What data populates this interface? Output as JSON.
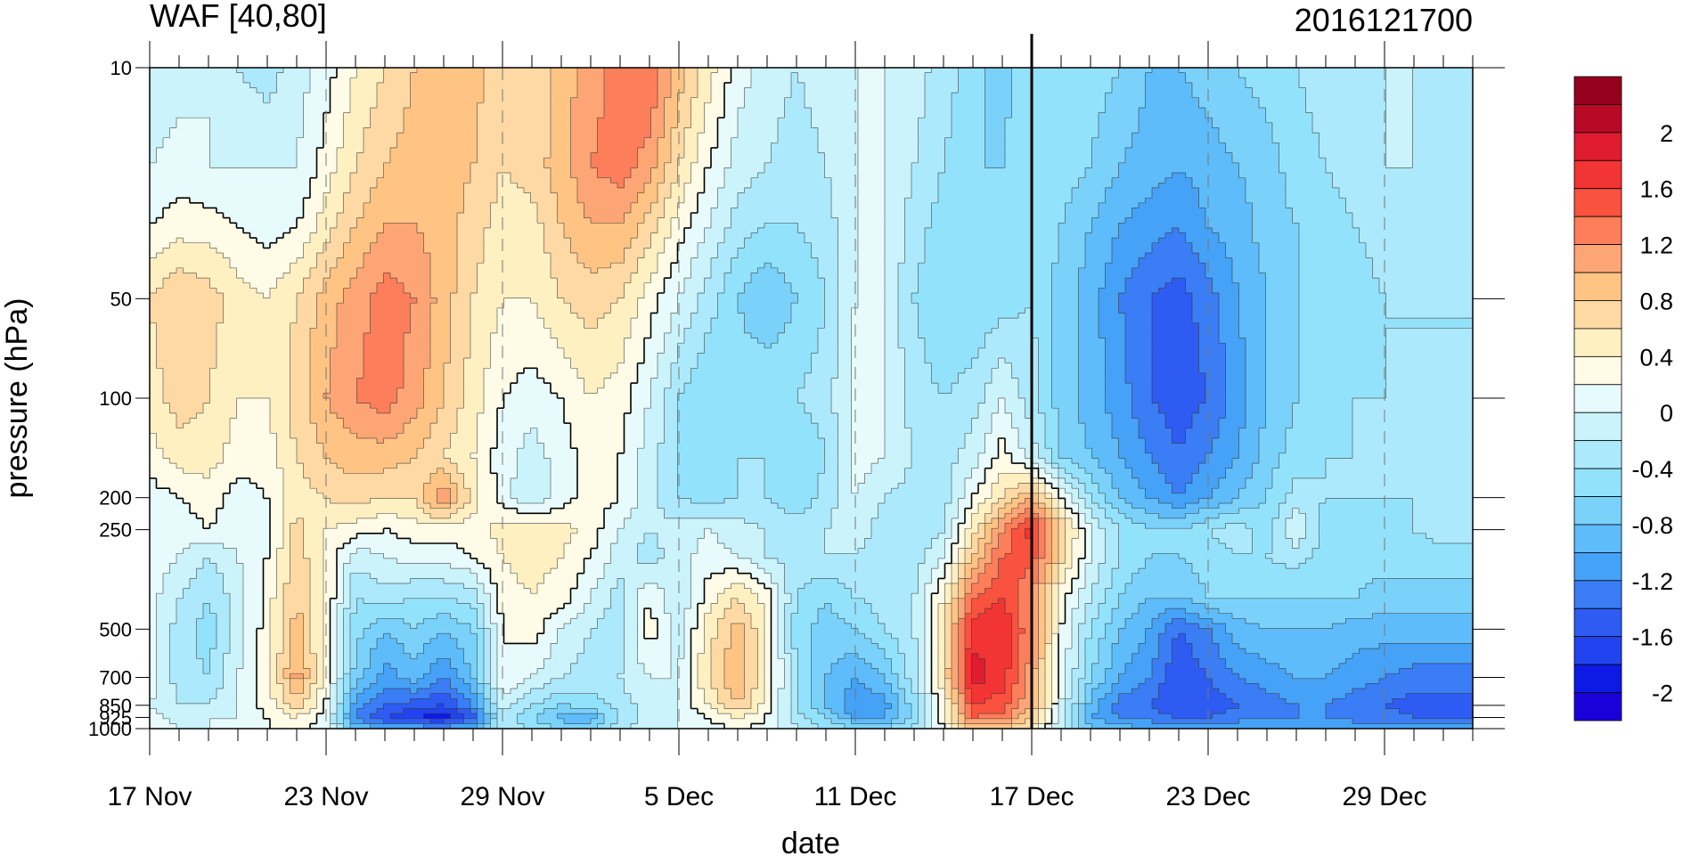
{
  "chart_data": {
    "type": "heatmap",
    "title": "WAF [40,80]",
    "subtitle": "2016121700",
    "xlabel": "date",
    "ylabel": "pressure (hPa)",
    "x_ticks": [
      "17 Nov",
      "23 Nov",
      "29 Nov",
      "5 Dec",
      "11 Dec",
      "17 Dec",
      "23 Dec",
      "29 Dec"
    ],
    "y_ticks": [
      "10",
      "50",
      "100",
      "200",
      "250",
      "500",
      "700",
      "850",
      "925",
      "1000"
    ],
    "y_scale": "log",
    "ylim": [
      1000,
      10
    ],
    "xlim": [
      "2016-11-17",
      "2017-01-01"
    ],
    "marker_line": "2016-12-17",
    "colorbar": {
      "levels": [
        -2.2,
        -2.0,
        -1.8,
        -1.6,
        -1.4,
        -1.2,
        -1.0,
        -0.8,
        -0.6,
        -0.4,
        -0.2,
        0,
        0.2,
        0.4,
        0.6,
        0.8,
        1.0,
        1.2,
        1.4,
        1.6,
        1.8,
        2.0,
        2.2
      ],
      "labels": [
        "2",
        "1.6",
        "1.2",
        "0.8",
        "0.4",
        "0",
        "-0.4",
        "-0.8",
        "-1.2",
        "-1.6",
        "-2"
      ],
      "colors": [
        "#1a00d9",
        "#0d1ae6",
        "#2144f0",
        "#2e5cf2",
        "#3a7df5",
        "#45a2f7",
        "#5ebcfa",
        "#7ad2fb",
        "#93e2fb",
        "#ade9fc",
        "#caf3fc",
        "#e8fbfc",
        "#fffbe6",
        "#fff0c2",
        "#ffd9a4",
        "#ffc484",
        "#fea576",
        "#fd7e5a",
        "#f9523f",
        "#f23434",
        "#df1c30",
        "#b80a27",
        "#96001f"
      ]
    },
    "columns_dates": [
      "17 Nov",
      "18 Nov",
      "19 Nov",
      "20 Nov",
      "21 Nov",
      "22 Nov",
      "23 Nov",
      "24 Nov",
      "25 Nov",
      "26 Nov",
      "27 Nov",
      "28 Nov",
      "29 Nov",
      "30 Nov",
      "1 Dec",
      "2 Dec",
      "3 Dec",
      "4 Dec",
      "5 Dec",
      "6 Dec",
      "7 Dec",
      "8 Dec",
      "9 Dec",
      "10 Dec",
      "11 Dec",
      "12 Dec",
      "13 Dec",
      "14 Dec",
      "15 Dec",
      "16 Dec",
      "17 Dec",
      "18 Dec",
      "19 Dec",
      "20 Dec",
      "21 Dec",
      "22 Dec",
      "23 Dec",
      "24 Dec",
      "25 Dec",
      "26 Dec",
      "27 Dec",
      "28 Dec",
      "29 Dec",
      "30 Dec",
      "31 Dec"
    ],
    "rows_hpa": [
      10,
      20,
      30,
      50,
      100,
      150,
      200,
      250,
      300,
      400,
      500,
      700,
      850,
      925,
      1000
    ],
    "values": [
      [
        -0.2,
        -0.1,
        0.0,
        -0.2,
        -0.3,
        -0.1,
        0.1,
        0.4,
        0.6,
        0.8,
        0.9,
        0.9,
        0.6,
        0.6,
        0.9,
        1.1,
        1.3,
        1.4,
        0.9,
        0.5,
        0.1,
        -0.1,
        -0.2,
        -0.1,
        0.0,
        0.0,
        -0.1,
        -0.3,
        -0.5,
        -0.7,
        -0.4,
        -0.4,
        -0.5,
        -0.6,
        -0.8,
        -0.8,
        -0.7,
        -0.6,
        -0.5,
        -0.4,
        -0.3,
        -0.2,
        -0.2,
        -0.2,
        -0.3
      ],
      [
        0.0,
        0.1,
        0.0,
        0.0,
        0.0,
        0.0,
        0.3,
        0.6,
        0.8,
        0.9,
        0.9,
        0.8,
        0.6,
        0.7,
        0.9,
        1.2,
        1.3,
        1.1,
        0.6,
        0.2,
        -0.1,
        -0.2,
        -0.3,
        -0.2,
        0.0,
        0.0,
        -0.2,
        -0.4,
        -0.6,
        -0.6,
        -0.4,
        -0.5,
        -0.6,
        -0.8,
        -0.9,
        -1.0,
        -0.9,
        -0.8,
        -0.7,
        -0.5,
        -0.4,
        -0.3,
        -0.2,
        -0.2,
        -0.3
      ],
      [
        0.2,
        0.3,
        0.3,
        0.2,
        0.1,
        0.2,
        0.5,
        0.8,
        1.0,
        1.0,
        0.9,
        0.7,
        0.5,
        0.5,
        0.8,
        1.0,
        1.0,
        0.7,
        0.3,
        0.0,
        -0.3,
        -0.4,
        -0.4,
        -0.3,
        0.0,
        0.0,
        -0.3,
        -0.5,
        -0.6,
        -0.5,
        -0.4,
        -0.6,
        -0.8,
        -1.0,
        -1.1,
        -1.2,
        -1.0,
        -0.9,
        -0.7,
        -0.6,
        -0.5,
        -0.4,
        -0.3,
        -0.3,
        -0.3
      ],
      [
        0.6,
        0.8,
        0.7,
        0.5,
        0.4,
        0.6,
        0.9,
        1.1,
        1.3,
        1.2,
        0.9,
        0.6,
        0.4,
        0.4,
        0.6,
        0.7,
        0.6,
        0.3,
        0.0,
        -0.3,
        -0.6,
        -0.8,
        -0.6,
        -0.4,
        0.0,
        0.0,
        -0.4,
        -0.6,
        -0.6,
        -0.5,
        -0.4,
        -0.7,
        -0.9,
        -1.2,
        -1.4,
        -1.5,
        -1.3,
        -1.0,
        -0.8,
        -0.6,
        -0.6,
        -0.5,
        -0.4,
        -0.4,
        -0.4
      ],
      [
        0.5,
        0.7,
        0.6,
        0.4,
        0.4,
        0.7,
        1.0,
        1.2,
        1.3,
        1.1,
        0.8,
        0.5,
        0.2,
        0.1,
        0.2,
        0.4,
        0.3,
        0.0,
        -0.4,
        -0.6,
        -0.5,
        -0.4,
        -0.4,
        -0.3,
        0.1,
        0.0,
        -0.3,
        -0.4,
        -0.3,
        0.0,
        -0.3,
        -0.7,
        -0.9,
        -1.1,
        -1.4,
        -1.5,
        -1.4,
        -1.1,
        -0.8,
        -0.6,
        -0.5,
        -0.4,
        -0.4,
        -0.4,
        -0.4
      ],
      [
        0.3,
        0.5,
        0.5,
        0.3,
        0.3,
        0.6,
        0.8,
        0.9,
        0.9,
        0.8,
        0.6,
        0.4,
        0.1,
        -0.1,
        0.1,
        0.3,
        0.2,
        -0.1,
        -0.4,
        -0.5,
        -0.4,
        -0.4,
        -0.6,
        -0.4,
        0.1,
        0.0,
        -0.2,
        -0.3,
        -0.1,
        0.3,
        -0.1,
        -0.6,
        -0.8,
        -1.0,
        -1.2,
        -1.4,
        -1.2,
        -1.0,
        -0.7,
        -0.5,
        -0.4,
        -0.4,
        -0.3,
        -0.3,
        -0.4
      ],
      [
        0.1,
        0.2,
        0.3,
        0.1,
        0.2,
        0.5,
        0.6,
        0.7,
        0.6,
        0.6,
        1.2,
        0.5,
        0.1,
        -0.2,
        0.1,
        0.3,
        0.2,
        -0.1,
        -0.4,
        -0.5,
        -0.4,
        -0.4,
        -0.6,
        -0.3,
        0.0,
        -0.2,
        -0.3,
        -0.3,
        0.2,
        0.6,
        1.0,
        0.2,
        -0.4,
        -0.8,
        -1.0,
        -1.2,
        -1.0,
        -0.8,
        -0.6,
        -0.3,
        -0.4,
        -0.4,
        -0.4,
        -0.4,
        -0.4
      ],
      [
        0.0,
        0.1,
        0.2,
        0.1,
        0.1,
        0.7,
        0.4,
        0.3,
        0.2,
        0.3,
        0.3,
        0.3,
        0.5,
        0.6,
        0.5,
        0.3,
        0.0,
        -0.2,
        -0.1,
        0.0,
        -0.1,
        -0.2,
        -0.2,
        -0.2,
        -0.1,
        -0.3,
        -0.4,
        -0.2,
        0.5,
        1.2,
        1.7,
        0.8,
        0.0,
        -0.4,
        -0.6,
        -0.6,
        -0.4,
        -0.3,
        -0.5,
        0.0,
        -0.5,
        -0.5,
        -0.5,
        -0.4,
        -0.3
      ],
      [
        0.1,
        0.0,
        -0.2,
        0.0,
        0.2,
        0.7,
        0.4,
        -0.1,
        0.0,
        0.1,
        0.1,
        0.2,
        0.4,
        0.5,
        0.4,
        0.2,
        -0.1,
        -0.3,
        -0.1,
        0.1,
        0.0,
        -0.2,
        -0.3,
        -0.2,
        -0.2,
        -0.3,
        -0.3,
        0.0,
        0.8,
        1.4,
        1.5,
        0.7,
        0.0,
        -0.4,
        -0.6,
        -0.6,
        -0.5,
        -0.4,
        -0.4,
        -0.3,
        -0.5,
        -0.5,
        -0.5,
        -0.5,
        -0.5
      ],
      [
        0.1,
        -0.2,
        -0.4,
        -0.1,
        0.3,
        0.8,
        0.4,
        -0.4,
        -0.3,
        -0.4,
        -0.4,
        -0.3,
        0.3,
        0.4,
        0.3,
        0.0,
        -0.3,
        0.2,
        -0.2,
        0.3,
        0.6,
        0.3,
        -0.4,
        -0.6,
        -0.4,
        -0.3,
        -0.2,
        0.4,
        1.4,
        1.6,
        1.2,
        0.3,
        -0.2,
        -0.6,
        -0.8,
        -0.8,
        -0.6,
        -0.6,
        -0.6,
        -0.6,
        -0.6,
        -0.6,
        -0.7,
        -0.7,
        -0.7
      ],
      [
        0.1,
        -0.3,
        -0.5,
        -0.1,
        0.3,
        0.9,
        0.3,
        -0.5,
        -0.8,
        -0.6,
        -0.8,
        -0.6,
        0.2,
        0.3,
        0.0,
        -0.2,
        -0.3,
        0.3,
        -0.1,
        0.5,
        0.9,
        0.4,
        -0.5,
        -0.7,
        -0.6,
        -0.4,
        -0.2,
        0.6,
        1.7,
        1.8,
        1.2,
        0.2,
        -0.4,
        -0.8,
        -1.0,
        -1.4,
        -1.2,
        -0.9,
        -0.8,
        -0.8,
        -0.8,
        -0.9,
        -0.9,
        -0.9,
        -0.9
      ],
      [
        0.1,
        -0.3,
        -0.4,
        0.0,
        0.3,
        1.1,
        0.3,
        -0.7,
        -1.1,
        -0.9,
        -1.2,
        -0.8,
        0.2,
        0.0,
        -0.2,
        -0.3,
        -0.2,
        0.0,
        0.0,
        0.6,
        1.0,
        0.4,
        -0.4,
        -0.8,
        -1.0,
        -0.8,
        -0.3,
        0.6,
        1.9,
        1.7,
        1.1,
        0.1,
        -0.6,
        -1.0,
        -1.2,
        -1.6,
        -1.4,
        -1.2,
        -1.1,
        -1.0,
        -1.0,
        -1.1,
        -1.2,
        -1.3,
        -1.3
      ],
      [
        0.0,
        -0.2,
        -0.2,
        0.0,
        0.3,
        0.7,
        0.2,
        -1.1,
        -1.4,
        -1.5,
        -1.6,
        -1.2,
        -0.1,
        -0.4,
        -0.6,
        -0.5,
        -0.3,
        -0.1,
        0.0,
        0.4,
        0.8,
        0.3,
        -0.4,
        -0.8,
        -1.2,
        -1.1,
        -0.5,
        0.3,
        1.6,
        1.5,
        1.0,
        0.0,
        -0.9,
        -1.3,
        -1.4,
        -1.6,
        -1.5,
        -1.4,
        -1.3,
        -1.2,
        -1.2,
        -1.3,
        -1.4,
        -1.5,
        -1.5
      ],
      [
        0.1,
        -0.1,
        0.0,
        0.0,
        0.2,
        0.4,
        0.1,
        -1.3,
        -1.6,
        -1.8,
        -1.9,
        -1.5,
        -0.3,
        -0.6,
        -0.9,
        -0.9,
        -0.4,
        -0.1,
        0.0,
        0.2,
        0.4,
        0.2,
        -0.3,
        -0.6,
        -1.0,
        -1.0,
        -0.5,
        0.3,
        1.4,
        1.3,
        0.8,
        -0.1,
        -1.0,
        -1.2,
        -1.3,
        -1.4,
        -1.4,
        -1.3,
        -1.2,
        -1.2,
        -1.2,
        -1.3,
        -1.3,
        -1.4,
        -1.4
      ],
      [
        0.2,
        0.0,
        0.0,
        0.0,
        0.2,
        0.3,
        0.1,
        -0.8,
        -1.0,
        -1.0,
        -1.1,
        -0.9,
        -0.2,
        -0.4,
        -0.6,
        -0.6,
        -0.3,
        0.0,
        0.0,
        0.1,
        0.2,
        0.1,
        -0.2,
        -0.4,
        -0.6,
        -0.6,
        -0.3,
        0.2,
        0.8,
        0.8,
        0.5,
        -0.2,
        -0.8,
        -0.9,
        -1.0,
        -1.0,
        -1.0,
        -1.0,
        -1.0,
        -1.0,
        -1.0,
        -1.0,
        -1.0,
        -1.1,
        -1.1
      ]
    ]
  }
}
